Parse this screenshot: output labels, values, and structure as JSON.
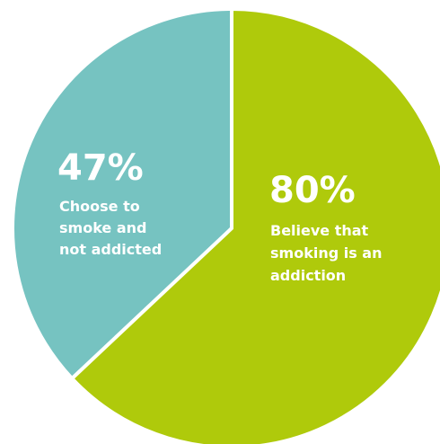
{
  "chart_data": {
    "type": "pie",
    "slices": [
      {
        "value": 47,
        "label_value": "47%",
        "label_lines": [
          "Choose to",
          "smoke and",
          "not addicted"
        ],
        "color": "#76c3c1"
      },
      {
        "value": 80,
        "label_value": "80%",
        "label_lines": [
          "Believe that",
          "smoking is an",
          "addiction"
        ],
        "color": "#afca0b"
      }
    ]
  }
}
